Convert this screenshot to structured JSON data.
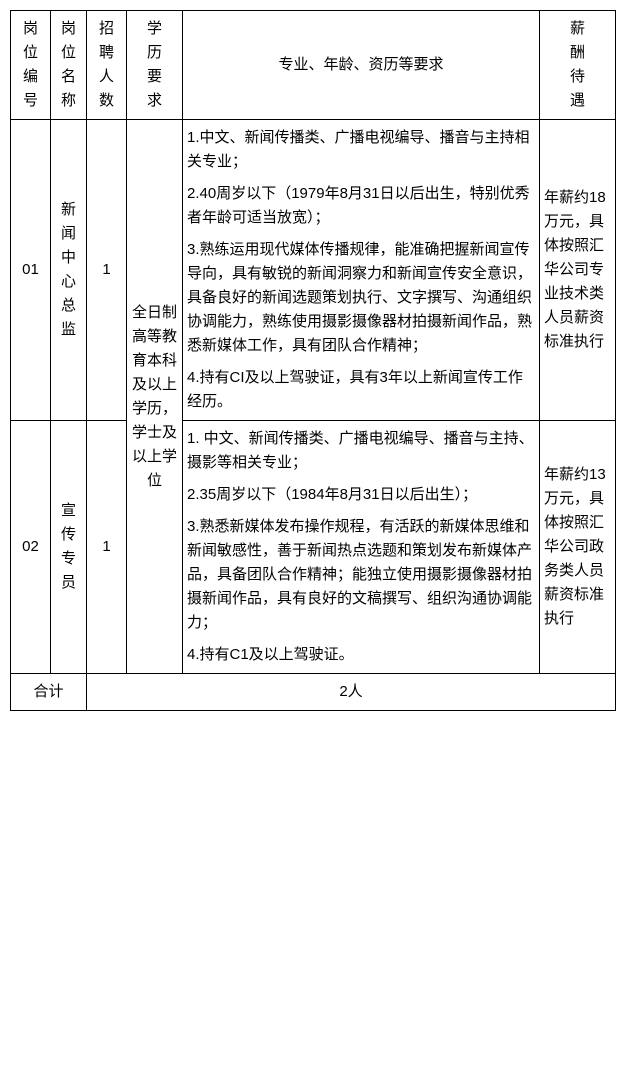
{
  "headers": {
    "no": "岗位编号",
    "name": "岗位名称",
    "count": "招聘人数",
    "edu": "学历要求",
    "req": "专业、年龄、资历等要求",
    "pay": "薪酬待遇"
  },
  "edu_shared": "全日制高等教育本科及以上学历，学士及以上学位",
  "rows": [
    {
      "no": "01",
      "name": "新闻中心总监",
      "count": "1",
      "req": {
        "r1": "1.中文、新闻传播类、广播电视编导、播音与主持相关专业；",
        "r2": "2.40周岁以下（1979年8月31日以后出生，特别优秀者年龄可适当放宽）；",
        "r3": "3.熟练运用现代媒体传播规律，能准确把握新闻宣传导向，具有敏锐的新闻洞察力和新闻宣传安全意识，具备良好的新闻选题策划执行、文字撰写、沟通组织协调能力，熟练使用摄影摄像器材拍摄新闻作品，熟悉新媒体工作，具有团队合作精神；",
        "r4": "4.持有CI及以上驾驶证，具有3年以上新闻宣传工作经历。"
      },
      "pay": "年薪约18万元，具体按照汇华公司专业技术类人员薪资标准执行"
    },
    {
      "no": "02",
      "name": "宣传专员",
      "count": "1",
      "req": {
        "r1": "1. 中文、新闻传播类、广播电视编导、播音与主持、摄影等相关专业；",
        "r2": "2.35周岁以下（1984年8月31日以后出生）；",
        "r3": "3.熟悉新媒体发布操作规程，有活跃的新媒体思维和新闻敏感性，善于新闻热点选题和策划发布新媒体产品，具备团队合作精神；能独立使用摄影摄像器材拍摄新闻作品，具有良好的文稿撰写、组织沟通协调能力；",
        "r4": "4.持有C1及以上驾驶证。"
      },
      "pay": "年薪约13万元，具体按照汇华公司政务类人员薪资标准执行"
    }
  ],
  "total": {
    "label": "合计",
    "value": "2人"
  }
}
